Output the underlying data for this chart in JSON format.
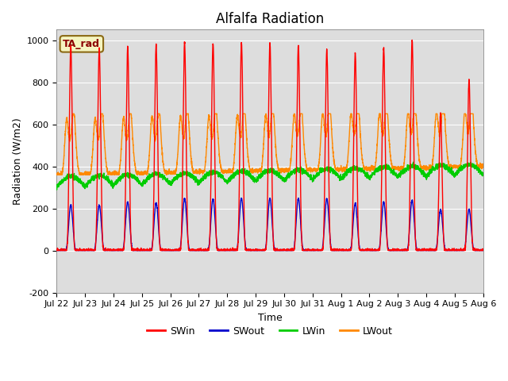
{
  "title": "Alfalfa Radiation",
  "xlabel": "Time",
  "ylabel": "Radiation (W/m2)",
  "ylim": [
    -200,
    1050
  ],
  "annotation": "TA_rad",
  "colors": {
    "SWin": "#ff0000",
    "SWout": "#0000cc",
    "LWin": "#00cc00",
    "LWout": "#ff8800"
  },
  "bg_color": "#dddddd",
  "grid_color": "#ffffff",
  "fig_bg": "#ffffff",
  "title_fontsize": 12,
  "axis_label_fontsize": 9,
  "tick_fontsize": 8,
  "legend_fontsize": 9,
  "xtick_labels": [
    "Jul 22",
    "Jul 23",
    "Jul 24",
    "Jul 25",
    "Jul 26",
    "Jul 27",
    "Jul 28",
    "Jul 29",
    "Jul 30",
    "Jul 31",
    "Aug 1",
    "Aug 2",
    "Aug 3",
    "Aug 4",
    "Aug 5",
    "Aug 6"
  ],
  "ytick_values": [
    -200,
    0,
    200,
    400,
    600,
    800,
    1000
  ],
  "num_days": 15,
  "SWin_peaks": [
    970,
    960,
    965,
    980,
    990,
    985,
    990,
    985,
    975,
    950,
    940,
    960,
    1000,
    650,
    810
  ],
  "SWout_peaks": [
    215,
    215,
    230,
    225,
    248,
    245,
    248,
    248,
    248,
    245,
    225,
    230,
    240,
    195,
    195
  ],
  "LWin_base": 300,
  "LWin_amp": 40,
  "LWout_base": 380,
  "LWout_daytime_amp": 200
}
